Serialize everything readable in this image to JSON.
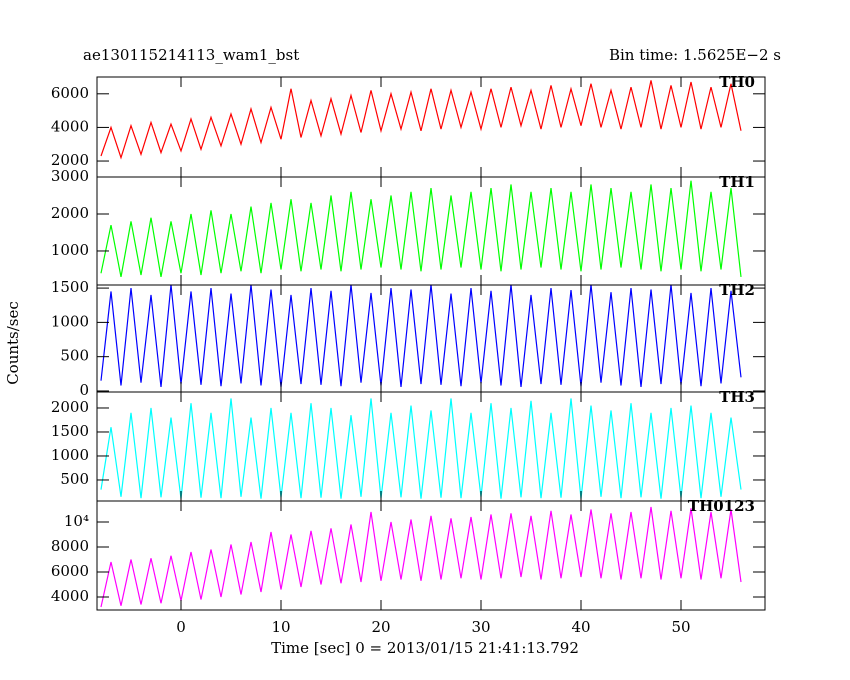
{
  "chart_data": {
    "type": "line",
    "title": "ae130115214113_wam1_bst",
    "subtitle": "Bin time: 1.5625E−2 s",
    "ylabel": "Counts/sec",
    "xlabel": "Time [sec] 0 = 2013/01/15 21:41:13.792",
    "xlim": [
      -8.4,
      58.4
    ],
    "xticks": [
      0,
      10,
      20,
      30,
      40,
      50
    ],
    "x": [
      -8,
      -7,
      -6,
      -5,
      -4,
      -3,
      -2,
      -1,
      0,
      1,
      2,
      3,
      4,
      5,
      6,
      7,
      8,
      9,
      10,
      11,
      12,
      13,
      14,
      15,
      16,
      17,
      18,
      19,
      20,
      21,
      22,
      23,
      24,
      25,
      26,
      27,
      28,
      29,
      30,
      31,
      32,
      33,
      34,
      35,
      36,
      37,
      38,
      39,
      40,
      41,
      42,
      43,
      44,
      45,
      46,
      47,
      48,
      49,
      50,
      51,
      52,
      53,
      54,
      55,
      56
    ],
    "panels": [
      {
        "name": "TH0",
        "color": "#ff0000",
        "ylim": [
          1050,
          7000
        ],
        "yticks": [
          2000,
          4000,
          6000
        ],
        "values": [
          2300,
          4000,
          2200,
          4100,
          2400,
          4300,
          2500,
          4200,
          2600,
          4500,
          2700,
          4600,
          2900,
          4800,
          3000,
          5100,
          3100,
          5200,
          3300,
          6300,
          3400,
          5600,
          3500,
          5700,
          3600,
          5900,
          3700,
          6200,
          3800,
          6000,
          3900,
          6100,
          3800,
          6300,
          3900,
          6200,
          4000,
          6100,
          3900,
          6300,
          4000,
          6400,
          4100,
          6200,
          3900,
          6500,
          4000,
          6300,
          4100,
          6600,
          4000,
          6200,
          3900,
          6400,
          4000,
          6800,
          3900,
          6500,
          4000,
          6700,
          3900,
          6400,
          4000,
          6600,
          3800
        ]
      },
      {
        "name": "TH1",
        "color": "#00ff00",
        "ylim": [
          80,
          3000
        ],
        "yticks": [
          1000,
          2000,
          3000
        ],
        "values": [
          400,
          1700,
          300,
          1800,
          350,
          1900,
          300,
          1800,
          400,
          2000,
          350,
          2100,
          400,
          2000,
          450,
          2200,
          400,
          2300,
          500,
          2400,
          450,
          2300,
          500,
          2500,
          450,
          2600,
          500,
          2400,
          550,
          2500,
          500,
          2600,
          450,
          2700,
          500,
          2500,
          550,
          2600,
          500,
          2700,
          450,
          2800,
          500,
          2600,
          550,
          2700,
          500,
          2600,
          450,
          2800,
          500,
          2700,
          550,
          2600,
          500,
          2800,
          450,
          2700,
          500,
          2900,
          450,
          2600,
          500,
          2700,
          300
        ]
      },
      {
        "name": "TH2",
        "color": "#0000ff",
        "ylim": [
          -15,
          1545
        ],
        "yticks": [
          0,
          500,
          1000,
          1500
        ],
        "values": [
          150,
          1450,
          80,
          1500,
          120,
          1400,
          60,
          1550,
          100,
          1450,
          90,
          1500,
          70,
          1420,
          110,
          1550,
          80,
          1480,
          60,
          1400,
          100,
          1500,
          90,
          1460,
          70,
          1550,
          120,
          1430,
          80,
          1500,
          60,
          1480,
          100,
          1550,
          90,
          1420,
          70,
          1500,
          110,
          1460,
          80,
          1550,
          60,
          1400,
          100,
          1500,
          90,
          1470,
          70,
          1550,
          120,
          1440,
          80,
          1500,
          60,
          1480,
          100,
          1550,
          90,
          1430,
          70,
          1500,
          110,
          1460,
          200
        ]
      },
      {
        "name": "TH3",
        "color": "#00ffff",
        "ylim": [
          62,
          2333
        ],
        "yticks": [
          500,
          1000,
          1500,
          2000
        ],
        "values": [
          300,
          1600,
          150,
          1900,
          120,
          2000,
          140,
          1800,
          110,
          2100,
          130,
          1900,
          120,
          2200,
          150,
          1800,
          110,
          2000,
          140,
          1900,
          120,
          2100,
          130,
          2000,
          110,
          1850,
          150,
          2200,
          120,
          1900,
          140,
          2050,
          110,
          1950,
          130,
          2200,
          120,
          1900,
          150,
          2100,
          110,
          2000,
          140,
          2150,
          120,
          1900,
          130,
          2200,
          110,
          2050,
          150,
          1950,
          120,
          2100,
          140,
          1900,
          110,
          2000,
          130,
          2050,
          120,
          1900,
          150,
          1800,
          300
        ]
      },
      {
        "name": "TH0123",
        "color": "#ff00ff",
        "ylim": [
          2960,
          11680
        ],
        "yticks": [
          4000,
          6000,
          8000,
          {
            "value": 10000,
            "label": "10⁴"
          }
        ],
        "values": [
          3200,
          6800,
          3300,
          7000,
          3400,
          7100,
          3500,
          7300,
          3700,
          7600,
          3800,
          7800,
          4000,
          8200,
          4200,
          8400,
          4400,
          9200,
          4600,
          9000,
          4800,
          9300,
          5000,
          9500,
          5100,
          9800,
          5200,
          10800,
          5300,
          10000,
          5400,
          10200,
          5300,
          10500,
          5400,
          10300,
          5500,
          10400,
          5400,
          10600,
          5500,
          10700,
          5600,
          10500,
          5400,
          10900,
          5500,
          10600,
          5600,
          11000,
          5500,
          10700,
          5400,
          10800,
          5500,
          11200,
          5400,
          10900,
          5500,
          11100,
          5400,
          10800,
          5500,
          11000,
          5200
        ]
      }
    ]
  }
}
